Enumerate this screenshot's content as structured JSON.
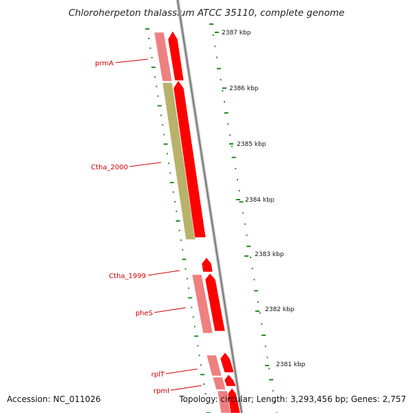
{
  "title": "Chloroherpeton thalassium ATCC 35110, complete genome",
  "footer": {
    "accession": "Accession: NC_011026",
    "topology": "Topology: circular; Length: 3,293,456 bp; Genes: 2,757"
  },
  "ticks": [
    "2387 kbp",
    "2386 kbp",
    "2385 kbp",
    "2384 kbp",
    "2383 kbp",
    "2382 kbp",
    "2381 kbp"
  ],
  "genes": [
    {
      "label": "prmA"
    },
    {
      "label": "Ctha_2000"
    },
    {
      "label": "Ctha_1999"
    },
    {
      "label": "pheS"
    },
    {
      "label": "rplT"
    },
    {
      "label": "rpmI"
    }
  ],
  "colors": {
    "cds_forward": "#ff0000",
    "cds_reverse": "#ef8080",
    "cds_other": "#b8b26a",
    "ticks": "#228b22",
    "backbone": "#8c8c8c",
    "label": "#d10000"
  }
}
